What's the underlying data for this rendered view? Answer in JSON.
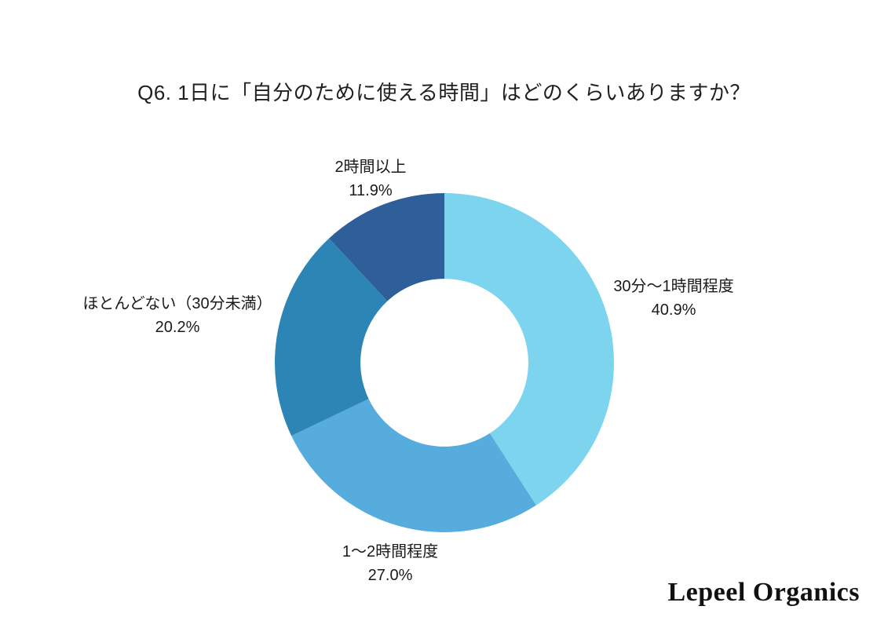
{
  "page": {
    "background": "#ffffff"
  },
  "title": "Q6. 1日に「自分のために使える時間」はどのくらいありますか？",
  "brand": "Lepeel Organics",
  "chart_data": {
    "type": "pie",
    "subtype": "donut",
    "title": "Q6. 1日に「自分のために使える時間」はどのくらいありますか？",
    "start_angle_deg": -90,
    "direction": "clockwise",
    "inner_radius_ratio": 0.495,
    "labels_position": "outside",
    "legend_position": "none",
    "segments": [
      {
        "label": "30分〜1時間程度",
        "value": 40.9,
        "pct_label": "40.9%",
        "color": "#7CD4EE"
      },
      {
        "label": "1〜2時間程度",
        "value": 27.0,
        "pct_label": "27.0%",
        "color": "#56ACDD"
      },
      {
        "label": "ほとんどない（30分未満）",
        "value": 20.2,
        "pct_label": "20.2%",
        "color": "#2D85B6"
      },
      {
        "label": "2時間以上",
        "value": 11.9,
        "pct_label": "11.9%",
        "color": "#2E5F98"
      }
    ]
  }
}
